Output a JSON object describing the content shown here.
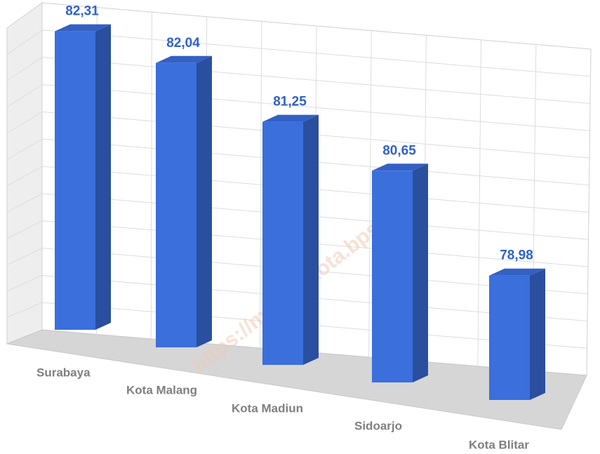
{
  "chart_data": {
    "type": "bar",
    "categories": [
      "Surabaya",
      "Kota Malang",
      "Kota Madiun",
      "Sidoarjo",
      "Kota Blitar"
    ],
    "values": [
      82.31,
      82.04,
      81.25,
      80.65,
      78.98
    ],
    "value_labels": [
      "82,31",
      "82,04",
      "81,25",
      "80,65",
      "78,98"
    ],
    "color": "#3a6fdc",
    "ylim": [
      76.6,
      83.5
    ],
    "watermark": "https://malangkota.bps.go.id"
  }
}
